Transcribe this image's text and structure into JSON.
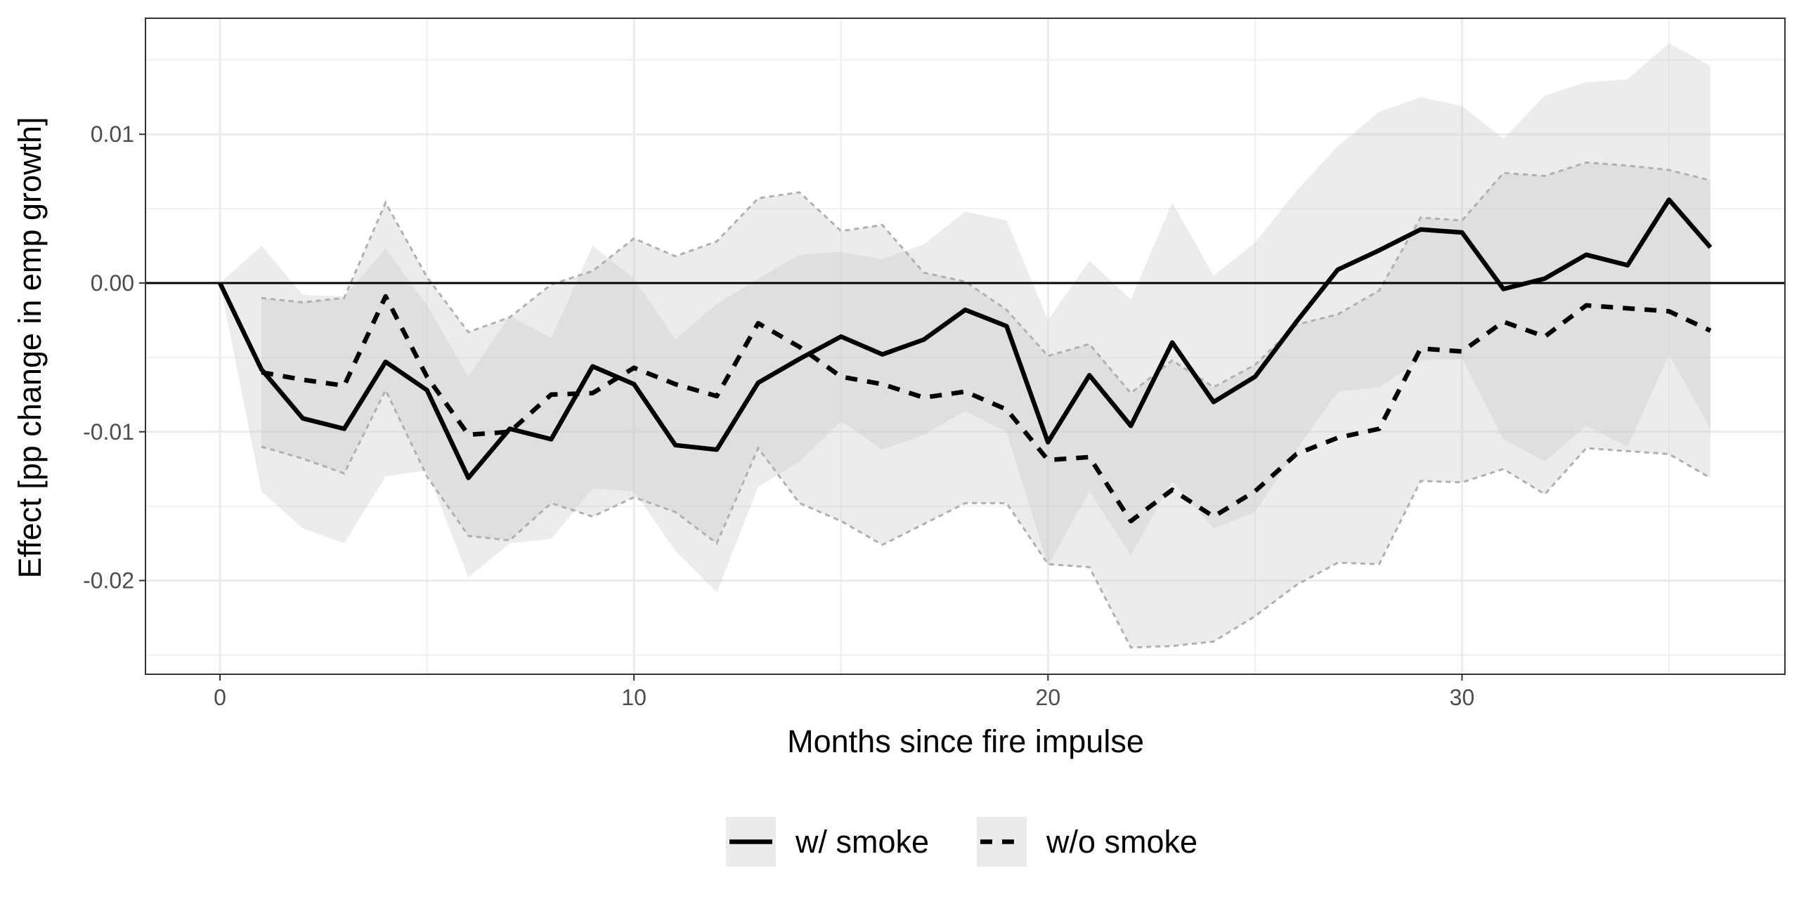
{
  "chart_data": {
    "type": "line",
    "title": "",
    "xlabel": "Months since fire impulse",
    "ylabel": "Effect [pp change in emp growth]",
    "xlim": [
      -1.8,
      37.8
    ],
    "ylim": [
      -0.0263,
      0.0178
    ],
    "x_ticks": [
      0,
      10,
      20,
      30
    ],
    "x_tick_labels": [
      "0",
      "10",
      "20",
      "30"
    ],
    "y_ticks": [
      -0.02,
      -0.01,
      0.0,
      0.01
    ],
    "y_tick_labels": [
      "-0.02",
      "-0.01",
      "0.00",
      "0.01"
    ],
    "grid": true,
    "reference_line_y": 0,
    "legend_position": "bottom",
    "x": [
      0,
      1,
      2,
      3,
      4,
      5,
      6,
      7,
      8,
      9,
      10,
      11,
      12,
      13,
      14,
      15,
      16,
      17,
      18,
      19,
      20,
      21,
      22,
      23,
      24,
      25,
      26,
      27,
      28,
      29,
      30,
      31,
      32,
      33,
      34,
      35,
      36
    ],
    "series": [
      {
        "name": "w/ smoke",
        "line_style": "solid",
        "values": [
          0.0,
          -0.0058,
          -0.0091,
          -0.0098,
          -0.0053,
          -0.0072,
          -0.0131,
          -0.0098,
          -0.0105,
          -0.0056,
          -0.0068,
          -0.0109,
          -0.0112,
          -0.0067,
          -0.0051,
          -0.0036,
          -0.0048,
          -0.0038,
          -0.0018,
          -0.0029,
          -0.0107,
          -0.0062,
          -0.0096,
          -0.004,
          -0.008,
          -0.0063,
          -0.0026,
          0.0009,
          0.0022,
          0.0036,
          0.0034,
          -0.0004,
          0.0003,
          0.0019,
          0.0012,
          0.0056,
          0.0024
        ],
        "band_upper": [
          0.0,
          0.0025,
          -0.0008,
          -0.0009,
          0.0023,
          -0.0015,
          -0.0063,
          -0.0022,
          -0.0037,
          0.0025,
          0.0003,
          -0.0038,
          -0.0014,
          0.0003,
          0.0019,
          0.0021,
          0.0016,
          0.0026,
          0.0048,
          0.0042,
          -0.0025,
          0.0015,
          -0.0011,
          0.0054,
          0.0005,
          0.0027,
          0.0062,
          0.0092,
          0.0115,
          0.0125,
          0.0119,
          0.0097,
          0.0126,
          0.0135,
          0.0137,
          0.0161,
          0.0146
        ],
        "band_lower": [
          0.0,
          -0.014,
          -0.0165,
          -0.0175,
          -0.013,
          -0.0126,
          -0.0198,
          -0.0175,
          -0.0172,
          -0.0138,
          -0.014,
          -0.018,
          -0.0208,
          -0.0137,
          -0.012,
          -0.0093,
          -0.0112,
          -0.0102,
          -0.0086,
          -0.01,
          -0.019,
          -0.014,
          -0.0183,
          -0.0133,
          -0.0165,
          -0.0154,
          -0.0112,
          -0.0073,
          -0.007,
          -0.0052,
          -0.0051,
          -0.0105,
          -0.012,
          -0.0096,
          -0.011,
          -0.0048,
          -0.0098
        ]
      },
      {
        "name": "w/o smoke",
        "line_style": "dashed",
        "values": [
          null,
          -0.006,
          -0.0065,
          -0.0069,
          -0.0009,
          -0.0063,
          -0.0102,
          -0.01,
          -0.0075,
          -0.0074,
          -0.0057,
          -0.0068,
          -0.0076,
          -0.0027,
          -0.0043,
          -0.0063,
          -0.0068,
          -0.0077,
          -0.0073,
          -0.0085,
          -0.0119,
          -0.0117,
          -0.016,
          -0.0139,
          -0.0157,
          -0.014,
          -0.0115,
          -0.0104,
          -0.0098,
          -0.0044,
          -0.0046,
          -0.0026,
          -0.0036,
          -0.0015,
          -0.0017,
          -0.0019,
          -0.0032
        ],
        "band_upper": [
          null,
          -0.001,
          -0.0013,
          -0.001,
          0.0054,
          0.0004,
          -0.0033,
          -0.0023,
          -0.0001,
          0.0008,
          0.003,
          0.0018,
          0.0028,
          0.0057,
          0.0061,
          0.0035,
          0.0039,
          0.0007,
          0.0001,
          -0.0018,
          -0.0049,
          -0.0041,
          -0.0074,
          -0.0052,
          -0.007,
          -0.0055,
          -0.0028,
          -0.0021,
          -0.0005,
          0.0044,
          0.0042,
          0.0074,
          0.0072,
          0.0081,
          0.0079,
          0.0076,
          0.0069
        ],
        "band_lower": [
          null,
          -0.011,
          -0.0118,
          -0.0128,
          -0.0072,
          -0.013,
          -0.017,
          -0.0173,
          -0.0148,
          -0.0157,
          -0.0144,
          -0.0154,
          -0.0175,
          -0.0111,
          -0.0148,
          -0.016,
          -0.0176,
          -0.0162,
          -0.0148,
          -0.0148,
          -0.0189,
          -0.0191,
          -0.0245,
          -0.0244,
          -0.0241,
          -0.0224,
          -0.0203,
          -0.0188,
          -0.0189,
          -0.0133,
          -0.0134,
          -0.0125,
          -0.0142,
          -0.0111,
          -0.0113,
          -0.0115,
          -0.0131
        ]
      }
    ]
  },
  "colors": {
    "line": "#000000",
    "band": "#c8c8c8",
    "band_border": "#b0b0b0",
    "grid": "#ebebeb",
    "panel_border": "#333333",
    "legend_key_bg": "#ebebeb"
  }
}
